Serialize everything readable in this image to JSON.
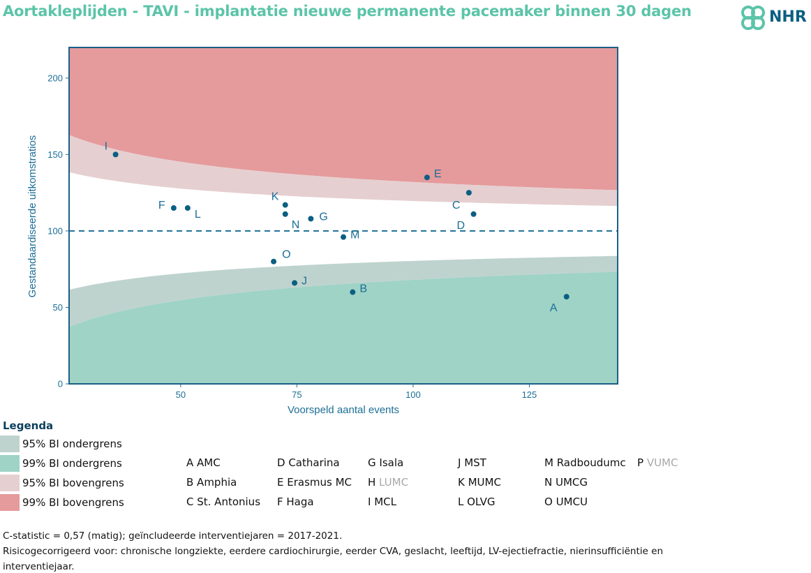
{
  "title": "Aortakleplijden - TAVI - implantatie nieuwe permanente pacemaker binnen 30 dagen",
  "logo": {
    "text": "NHR",
    "icon": "nhr-cross-logo-icon"
  },
  "colors": {
    "ci95_lower": "#bfd3ce",
    "ci99_lower": "#9ed3c6",
    "ci95_upper": "#e6cfd0",
    "ci99_upper": "#e59a9c",
    "point": "#0b5f82",
    "axis": "#1c6e96"
  },
  "chart_data": {
    "type": "scatter",
    "xlabel": "Voorspeld aantal events",
    "ylabel": "Gestandaardiseerde uitkomstratios",
    "xlim": [
      26,
      144
    ],
    "ylim": [
      0,
      220
    ],
    "xticks": [
      "50",
      "75",
      "100",
      "125"
    ],
    "yticks": [
      "0",
      "50",
      "100",
      "150",
      "200"
    ],
    "reference_line": 100,
    "points": [
      {
        "label": "A",
        "x": 133,
        "y": 57
      },
      {
        "label": "B",
        "x": 87,
        "y": 60
      },
      {
        "label": "C",
        "x": 112,
        "y": 125
      },
      {
        "label": "D",
        "x": 113,
        "y": 111
      },
      {
        "label": "E",
        "x": 103,
        "y": 135
      },
      {
        "label": "F",
        "x": 48.5,
        "y": 115
      },
      {
        "label": "G",
        "x": 78,
        "y": 108
      },
      {
        "label": "I",
        "x": 36,
        "y": 150
      },
      {
        "label": "J",
        "x": 74.5,
        "y": 66
      },
      {
        "label": "K",
        "x": 72.5,
        "y": 117
      },
      {
        "label": "L",
        "x": 51.5,
        "y": 115
      },
      {
        "label": "M",
        "x": 85,
        "y": 96
      },
      {
        "label": "N",
        "x": 72.5,
        "y": 111
      },
      {
        "label": "O",
        "x": 70,
        "y": 80
      }
    ]
  },
  "legend": {
    "title": "Legenda",
    "items": [
      {
        "label": "95% BI ondergrens"
      },
      {
        "label": "99% BI ondergrens"
      },
      {
        "label": "95% BI bovengrens"
      },
      {
        "label": "99% BI bovengrens"
      }
    ]
  },
  "hospitals": [
    {
      "text": "A AMC",
      "active": true
    },
    {
      "text": "B Amphia",
      "active": true
    },
    {
      "text": "C St. Antonius",
      "active": true
    },
    {
      "text": "D Catharina",
      "active": true
    },
    {
      "text": "E Erasmus MC",
      "active": true
    },
    {
      "text": "F Haga",
      "active": true
    },
    {
      "text": "G Isala",
      "active": true
    },
    {
      "letter": "H",
      "name": " LUMC",
      "active": false
    },
    {
      "text": "I MCL",
      "active": true
    },
    {
      "text": "J MST",
      "active": true
    },
    {
      "text": "K MUMC",
      "active": true
    },
    {
      "text": "L OLVG",
      "active": true
    },
    {
      "text": "M Radboudumc",
      "active": true
    },
    {
      "text": "N UMCG",
      "active": true
    },
    {
      "text": "O UMCU",
      "active": true
    },
    {
      "letter": "P",
      "name": " VUMC",
      "active": false
    }
  ],
  "notes": [
    "C-statistic = 0,57 (matig); geïncludeerde interventiejaren = 2017-2021.",
    "Risicogecorrigeerd voor:  chronische longziekte, eerdere cardiochirurgie, eerder CVA, geslacht, leeftijd, LV-ejectiefractie, nierinsufficiëntie en",
    "interventiejaar."
  ]
}
